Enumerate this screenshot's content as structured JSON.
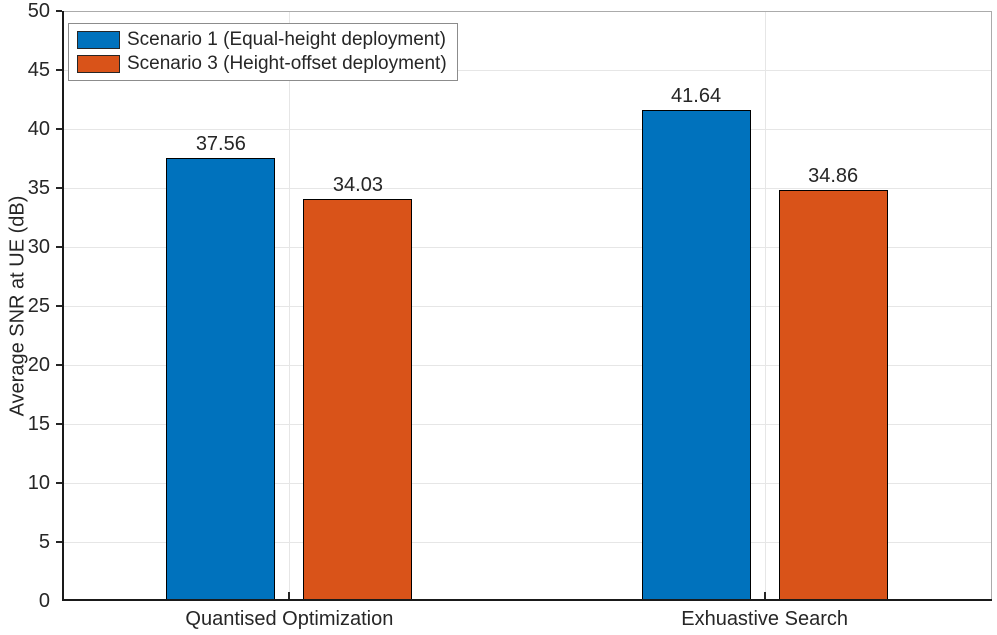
{
  "figure": {
    "background": "#FFFFFF",
    "text_color": "#262626"
  },
  "chart_data": {
    "type": "bar",
    "title": "",
    "categories": [
      "Quantised Optimization",
      "Exhuastive Search"
    ],
    "series": [
      {
        "name": "Scenario 1 (Equal-height deployment)",
        "color": "#0072BD",
        "values": [
          37.56,
          41.64
        ]
      },
      {
        "name": "Scenario 3 (Height-offset deployment)",
        "color": "#D95319",
        "values": [
          34.03,
          34.86
        ]
      }
    ],
    "xlabel": "",
    "ylabel": "Average SNR at UE (dB)",
    "ylim": [
      0,
      50
    ],
    "ytick_step": 5,
    "yticks": [
      0,
      5,
      10,
      15,
      20,
      25,
      30,
      35,
      40,
      45,
      50
    ],
    "grid": true,
    "grid_color": "#E6E6E6",
    "axis_color": "#262626",
    "bar_edge_color": "#000000",
    "bar_value_labels": true,
    "value_label_decimals": 2,
    "legend_position": "top-left"
  }
}
